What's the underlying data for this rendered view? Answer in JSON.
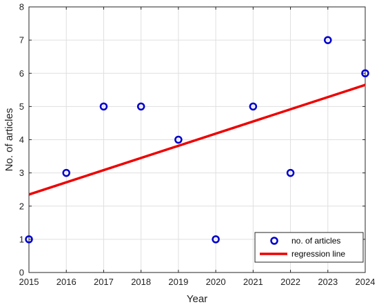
{
  "chart_data": {
    "type": "scatter",
    "title": "",
    "xlabel": "Year",
    "ylabel": "No. of articles",
    "xlim": [
      2015,
      2024
    ],
    "ylim": [
      0,
      8
    ],
    "xticks": [
      2015,
      2016,
      2017,
      2018,
      2019,
      2020,
      2021,
      2022,
      2023,
      2024
    ],
    "yticks": [
      0,
      1,
      2,
      3,
      4,
      5,
      6,
      7,
      8
    ],
    "grid": true,
    "legend_position": "bottom-right",
    "series": [
      {
        "name": "no. of articles",
        "kind": "scatter",
        "marker": "circle",
        "color": "#0000cc",
        "x": [
          2015,
          2016,
          2017,
          2018,
          2019,
          2020,
          2021,
          2022,
          2023,
          2024
        ],
        "y": [
          1,
          3,
          5,
          5,
          4,
          1,
          5,
          3,
          7,
          6
        ]
      },
      {
        "name": "regression line",
        "kind": "line",
        "color": "#ee0000",
        "x": [
          2015,
          2024
        ],
        "y": [
          2.35,
          5.65
        ]
      }
    ]
  }
}
